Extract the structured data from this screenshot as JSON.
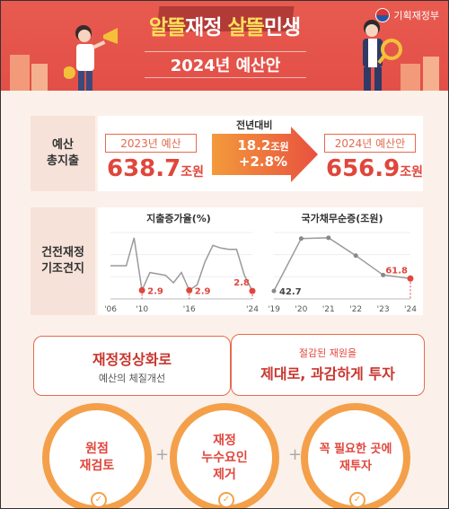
{
  "header": {
    "title_part1": "알뜰",
    "title_part2": "재정 ",
    "title_part3": "살뜰",
    "title_part4": "민생",
    "subtitle": "2024년 예산안",
    "ministry": "기획재정부"
  },
  "budget": {
    "label": "예산\n총지출",
    "y2023_label": "2023년 예산",
    "y2023_value": "638.7",
    "y2023_unit": "조원",
    "compare_label": "전년대비",
    "diff_value": "18.2",
    "diff_unit": "조원",
    "diff_pct": "+2.8%",
    "y2024_label": "2024년 예산안",
    "y2024_value": "656.9",
    "y2024_unit": "조원"
  },
  "fiscal": {
    "label": "건전재정\n기조견지",
    "colors": {
      "accent": "#e0463c",
      "line": "#9a9a9a"
    }
  },
  "chart_data": [
    {
      "type": "line",
      "title": "지출증가율(%)",
      "x": [
        "'06",
        "'07",
        "'08",
        "'09",
        "'10",
        "'11",
        "'12",
        "'13",
        "'14",
        "'15",
        "'16",
        "'17",
        "'18",
        "'19",
        "'20",
        "'21",
        "'22",
        "'23",
        "'24"
      ],
      "xticks": [
        "'06",
        "'10",
        "'16",
        "'24"
      ],
      "values": [
        6.5,
        6.5,
        6.5,
        10.6,
        2.9,
        5.5,
        5.3,
        5.1,
        4.0,
        5.5,
        2.9,
        3.7,
        7.1,
        9.5,
        9.1,
        8.9,
        8.9,
        5.1,
        2.8
      ],
      "labels": [
        {
          "x": "'10",
          "text": "2.9"
        },
        {
          "x": "'16",
          "text": "2.9"
        },
        {
          "x": "'24",
          "text": "2.8"
        }
      ],
      "highlight": [
        "'10",
        "'16",
        "'24"
      ]
    },
    {
      "type": "line",
      "title": "국가채무순증(조원)",
      "x": [
        "'19",
        "'20",
        "'21",
        "'22",
        "'23",
        "'24"
      ],
      "xticks": [
        "'19",
        "'20",
        "'21",
        "'22",
        "'23",
        "'24"
      ],
      "values": [
        42.7,
        123.4,
        124.5,
        97.1,
        67.3,
        61.8
      ],
      "labels": [
        {
          "x": "'19",
          "text": "42.7"
        },
        {
          "x": "'24",
          "text": "61.8"
        }
      ],
      "highlight": [
        "'24"
      ]
    }
  ],
  "bottom": {
    "left_title": "재정정상화로",
    "left_sub": "예산의 체질개선",
    "right_sub": "절감된 재원을",
    "right_title": "제대로, 과감하게 투자",
    "circle1": "원점\n재검토",
    "circle2": "재정\n누수요인\n제거",
    "circle3": "꼭 필요한 곳에\n재투자",
    "plus": "+"
  }
}
